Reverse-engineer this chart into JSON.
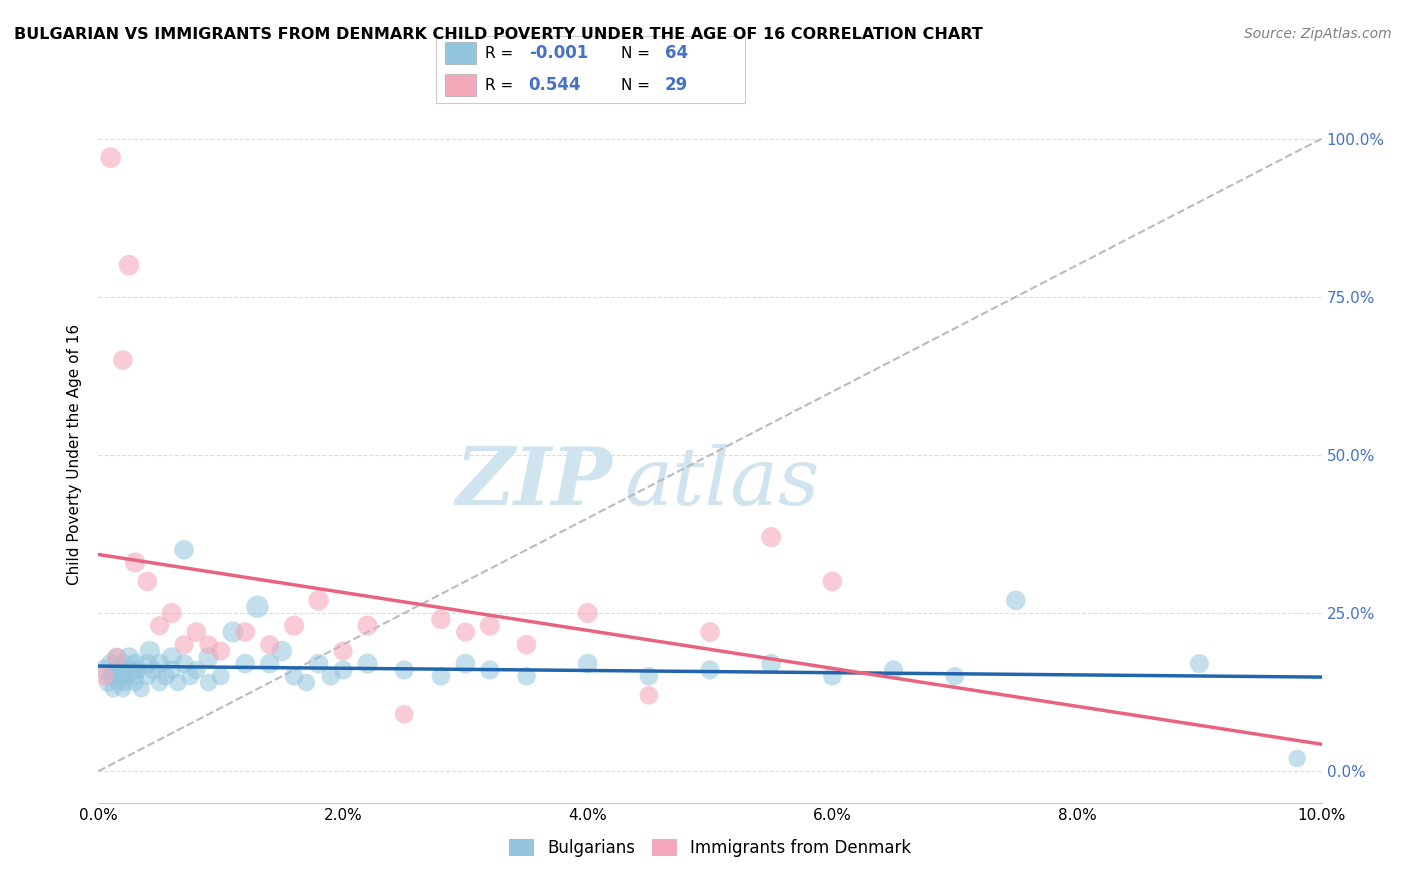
{
  "title": "BULGARIAN VS IMMIGRANTS FROM DENMARK CHILD POVERTY UNDER THE AGE OF 16 CORRELATION CHART",
  "source": "Source: ZipAtlas.com",
  "ylabel": "Child Poverty Under the Age of 16",
  "legend_label1": "Bulgarians",
  "legend_label2": "Immigrants from Denmark",
  "r1_text": "R = -0.001",
  "n1_text": "N = 64",
  "r2_text": "R =  0.544",
  "n2_text": "N = 29",
  "xlim": [
    0.0,
    0.1
  ],
  "ylim": [
    -0.05,
    1.05
  ],
  "right_yticks": [
    0.0,
    0.25,
    0.5,
    0.75,
    1.0
  ],
  "right_yticklabels": [
    "0.0%",
    "25.0%",
    "50.0%",
    "75.0%",
    "100.0%"
  ],
  "color_blue": "#92c5de",
  "color_pink": "#f4a9bb",
  "color_blue_line": "#2166ac",
  "color_pink_line": "#e8637e",
  "color_gray_dash": "#bbbbbb",
  "bg_color": "#ffffff",
  "grid_color": "#dddddd",
  "bulgarians_x": [
    0.0005,
    0.0008,
    0.001,
    0.001,
    0.0012,
    0.0013,
    0.0015,
    0.0016,
    0.0018,
    0.002,
    0.002,
    0.002,
    0.0022,
    0.0023,
    0.0025,
    0.0028,
    0.003,
    0.003,
    0.003,
    0.0032,
    0.0035,
    0.004,
    0.004,
    0.0042,
    0.0045,
    0.005,
    0.005,
    0.0055,
    0.006,
    0.006,
    0.0065,
    0.007,
    0.007,
    0.0075,
    0.008,
    0.009,
    0.009,
    0.01,
    0.011,
    0.012,
    0.013,
    0.014,
    0.015,
    0.016,
    0.017,
    0.018,
    0.019,
    0.02,
    0.022,
    0.025,
    0.028,
    0.03,
    0.032,
    0.035,
    0.04,
    0.045,
    0.05,
    0.055,
    0.06,
    0.065,
    0.07,
    0.075,
    0.09,
    0.098
  ],
  "bulgarians_y": [
    0.16,
    0.14,
    0.17,
    0.15,
    0.13,
    0.16,
    0.18,
    0.14,
    0.15,
    0.17,
    0.16,
    0.13,
    0.14,
    0.15,
    0.18,
    0.16,
    0.17,
    0.14,
    0.15,
    0.16,
    0.13,
    0.17,
    0.15,
    0.19,
    0.16,
    0.14,
    0.17,
    0.15,
    0.18,
    0.16,
    0.14,
    0.35,
    0.17,
    0.15,
    0.16,
    0.14,
    0.18,
    0.15,
    0.22,
    0.17,
    0.26,
    0.17,
    0.19,
    0.15,
    0.14,
    0.17,
    0.15,
    0.16,
    0.17,
    0.16,
    0.15,
    0.17,
    0.16,
    0.15,
    0.17,
    0.15,
    0.16,
    0.17,
    0.15,
    0.16,
    0.15,
    0.27,
    0.17,
    0.02
  ],
  "bulgarians_size": [
    220,
    180,
    200,
    160,
    150,
    180,
    200,
    160,
    170,
    200,
    190,
    150,
    160,
    170,
    210,
    180,
    200,
    160,
    170,
    180,
    150,
    200,
    170,
    220,
    190,
    160,
    200,
    170,
    210,
    190,
    160,
    200,
    190,
    170,
    180,
    160,
    210,
    170,
    230,
    200,
    260,
    200,
    220,
    180,
    160,
    200,
    180,
    190,
    210,
    190,
    180,
    200,
    190,
    180,
    200,
    180,
    190,
    200,
    180,
    190,
    180,
    200,
    190,
    160
  ],
  "denmark_x": [
    0.0005,
    0.001,
    0.0015,
    0.002,
    0.0025,
    0.003,
    0.004,
    0.005,
    0.006,
    0.007,
    0.008,
    0.009,
    0.01,
    0.012,
    0.014,
    0.016,
    0.018,
    0.02,
    0.022,
    0.025,
    0.028,
    0.03,
    0.032,
    0.035,
    0.04,
    0.045,
    0.05,
    0.055,
    0.06
  ],
  "denmark_y": [
    0.15,
    0.97,
    0.18,
    0.65,
    0.8,
    0.33,
    0.3,
    0.23,
    0.25,
    0.2,
    0.22,
    0.2,
    0.19,
    0.22,
    0.2,
    0.23,
    0.27,
    0.19,
    0.23,
    0.09,
    0.24,
    0.22,
    0.23,
    0.2,
    0.25,
    0.12,
    0.22,
    0.37,
    0.3
  ],
  "denmark_size": [
    180,
    220,
    180,
    200,
    220,
    210,
    200,
    190,
    210,
    190,
    200,
    180,
    190,
    200,
    190,
    210,
    220,
    190,
    210,
    180,
    200,
    190,
    210,
    200,
    210,
    180,
    200,
    210,
    200
  ],
  "watermark_zip": "ZIP",
  "watermark_atlas": "atlas",
  "watermark_color": "#d0e4f0"
}
